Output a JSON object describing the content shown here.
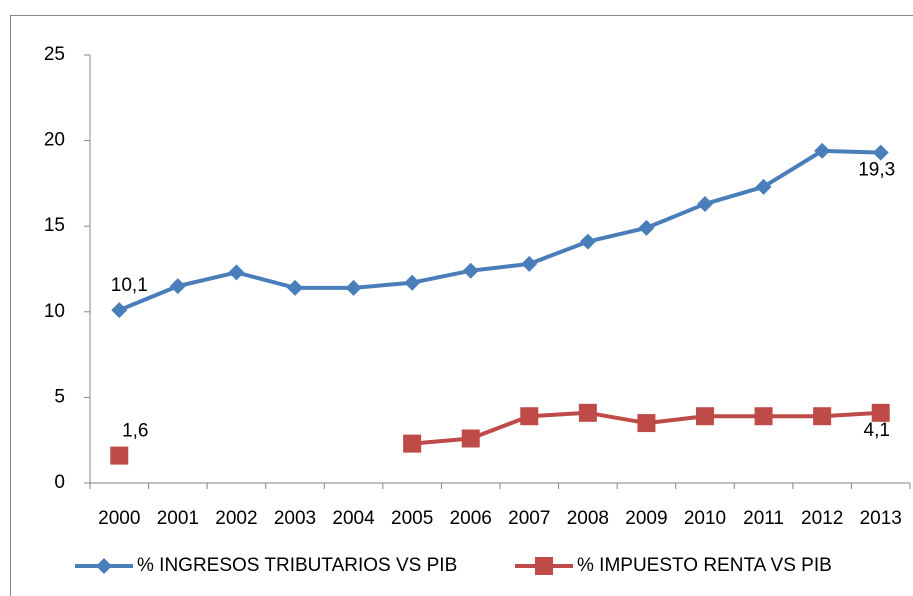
{
  "chart_data": {
    "type": "line",
    "categories": [
      "2000",
      "2001",
      "2002",
      "2003",
      "2004",
      "2005",
      "2006",
      "2007",
      "2008",
      "2009",
      "2010",
      "2011",
      "2012",
      "2013"
    ],
    "series": [
      {
        "name": "% INGRESOS TRIBUTARIOS VS PIB",
        "color": "#4a7ebb",
        "marker": "diamond",
        "values": [
          10.1,
          11.5,
          12.3,
          11.4,
          11.4,
          11.7,
          12.4,
          12.8,
          14.1,
          14.9,
          16.3,
          17.3,
          19.4,
          19.3
        ],
        "value_labels": [
          "10,1",
          null,
          null,
          null,
          null,
          null,
          null,
          null,
          null,
          null,
          null,
          null,
          null,
          "19,3"
        ]
      },
      {
        "name": "% IMPUESTO RENTA VS PIB",
        "color": "#be4b48",
        "marker": "square",
        "values": [
          1.6,
          null,
          null,
          null,
          null,
          2.3,
          2.6,
          3.9,
          4.1,
          3.5,
          3.9,
          3.9,
          3.9,
          4.1
        ],
        "value_labels": [
          "1,6",
          null,
          null,
          null,
          null,
          null,
          null,
          null,
          null,
          null,
          null,
          null,
          null,
          "4,1"
        ]
      }
    ],
    "ylim": [
      0,
      25
    ],
    "yticks": [
      0,
      5,
      10,
      15,
      20,
      25
    ],
    "grid": false,
    "legend": "bottom"
  }
}
